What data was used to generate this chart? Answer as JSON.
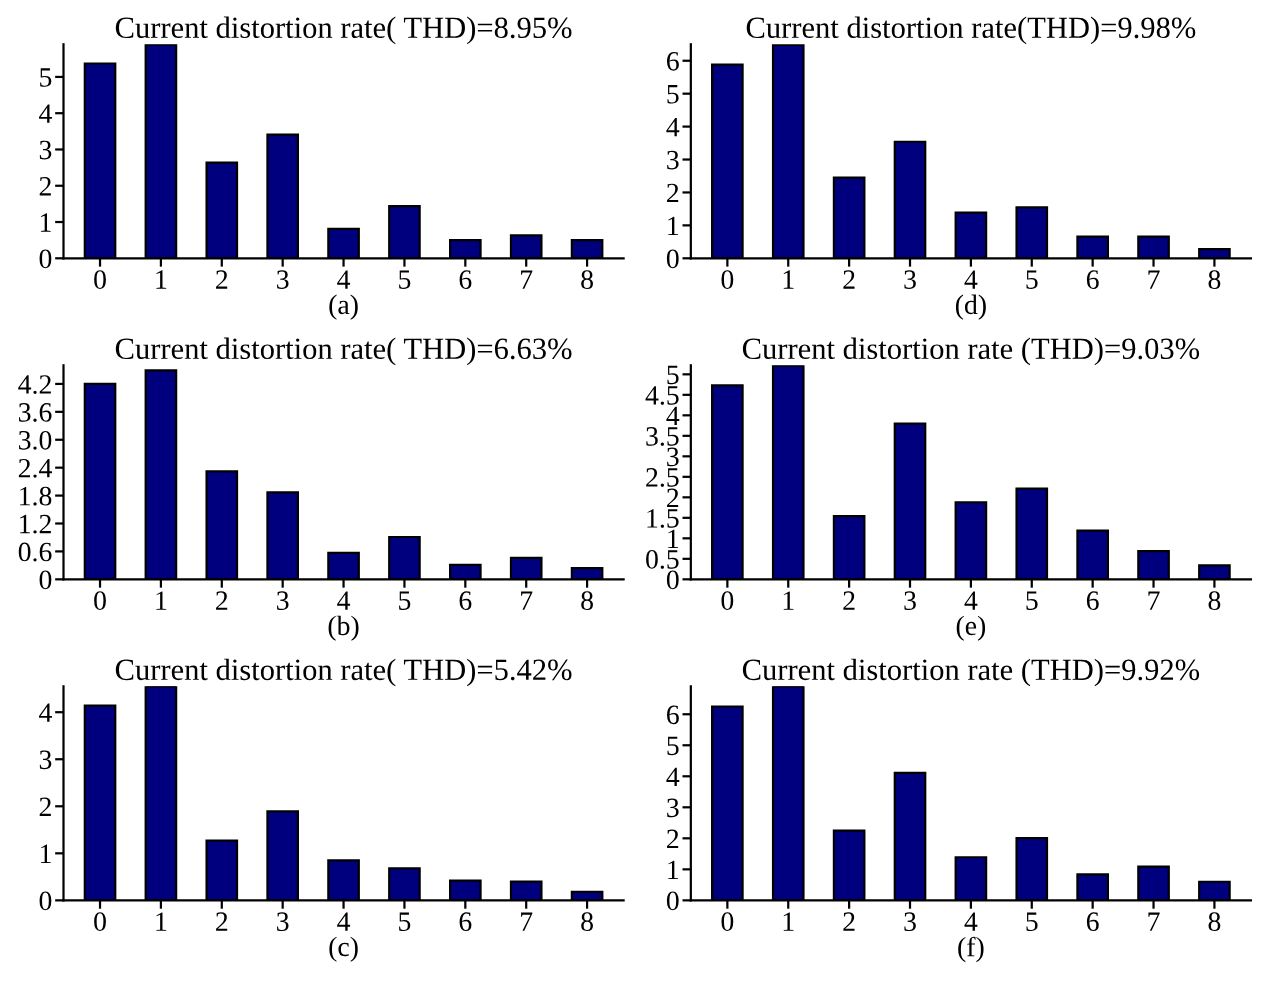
{
  "chart_data": [
    {
      "type": "bar",
      "title": "Current distortion rate( THD)=8.95%",
      "xlabel": "(a)",
      "categories": [
        "0",
        "1",
        "2",
        "3",
        "4",
        "5",
        "6",
        "7",
        "8"
      ],
      "values": [
        5.37,
        5.89,
        2.64,
        3.41,
        0.81,
        1.44,
        0.5,
        0.63,
        0.5
      ],
      "color": "#00007f",
      "ylim": [
        0,
        5.9
      ],
      "yticks": [
        0,
        1,
        2,
        3,
        4,
        5
      ],
      "grid": false
    },
    {
      "type": "bar",
      "title": "Current distortion rate(THD)=9.98%",
      "xlabel": "(d)",
      "categories": [
        "0",
        "1",
        "2",
        "3",
        "4",
        "5",
        "6",
        "7",
        "8"
      ],
      "values": [
        5.88,
        6.48,
        2.45,
        3.54,
        1.39,
        1.55,
        0.66,
        0.66,
        0.28
      ],
      "color": "#00007f",
      "ylim": [
        0,
        6.5
      ],
      "yticks": [
        0,
        1,
        2,
        3,
        4,
        5,
        6
      ],
      "grid": false
    },
    {
      "type": "bar",
      "title": "Current distortion rate( THD)=6.63%",
      "xlabel": "(b)",
      "categories": [
        "0",
        "1",
        "2",
        "3",
        "4",
        "5",
        "6",
        "7",
        "8"
      ],
      "values": [
        4.2,
        4.49,
        2.32,
        1.87,
        0.57,
        0.91,
        0.31,
        0.46,
        0.24
      ],
      "color": "#00007f",
      "ylim": [
        0,
        4.6
      ],
      "yticks": [
        0,
        {
          "value": 0.6,
          "label": "0.6"
        },
        {
          "value": 1.2,
          "label": "1.2"
        },
        {
          "value": 1.8,
          "label": "1.8"
        },
        {
          "value": 2.4,
          "label": "2.4"
        },
        {
          "value": 3.0,
          "label": "3.0"
        },
        {
          "value": 3.6,
          "label": "3.6"
        },
        {
          "value": 4.2,
          "label": "4.2"
        }
      ],
      "grid": false
    },
    {
      "type": "bar",
      "title": "Current distortion rate (THD)=9.03%",
      "xlabel": "(e)",
      "categories": [
        "0",
        "1",
        "2",
        "3",
        "4",
        "5",
        "6",
        "7",
        "8"
      ],
      "values": [
        4.73,
        5.21,
        1.54,
        3.8,
        1.88,
        2.21,
        1.19,
        0.69,
        0.34
      ],
      "color": "#00007f",
      "ylim": [
        0,
        5.22
      ],
      "yticks": [
        0,
        0.5,
        1,
        1.5,
        2,
        2.5,
        3,
        3.5,
        4,
        4.5,
        5
      ],
      "grid": false
    },
    {
      "type": "bar",
      "title": "Current distortion rate( THD)=5.42%",
      "xlabel": "(c)",
      "categories": [
        "0",
        "1",
        "2",
        "3",
        "4",
        "5",
        "6",
        "7",
        "8"
      ],
      "values": [
        4.14,
        4.55,
        1.27,
        1.89,
        0.85,
        0.68,
        0.42,
        0.4,
        0.18
      ],
      "color": "#00007f",
      "ylim": [
        0,
        4.55
      ],
      "yticks": [
        0,
        1,
        2,
        3,
        4
      ],
      "grid": false
    },
    {
      "type": "bar",
      "title": "Current distortion rate (THD)=9.92%",
      "xlabel": "(f)",
      "categories": [
        "0",
        "1",
        "2",
        "3",
        "4",
        "5",
        "6",
        "7",
        "8"
      ],
      "values": [
        6.25,
        6.9,
        2.25,
        4.11,
        1.39,
        2.01,
        0.84,
        1.09,
        0.6
      ],
      "color": "#00007f",
      "ylim": [
        0,
        6.9
      ],
      "yticks": [
        0,
        1,
        2,
        3,
        4,
        5,
        6
      ],
      "grid": false
    }
  ]
}
